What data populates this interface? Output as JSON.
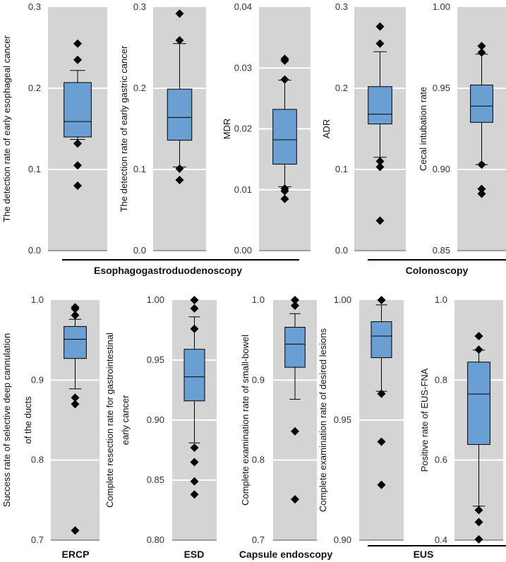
{
  "chart_data": [
    {
      "type": "box",
      "ylabel": "The detection rate of early esophageal cancer",
      "ylim": [
        0,
        0.3
      ],
      "ticks": [
        0.0,
        0.1,
        0.2,
        0.3
      ],
      "tick_labels": [
        "0.0",
        "0.1",
        "0.2",
        "0.3"
      ],
      "box": {
        "whisker_low": 0.137,
        "q1": 0.14,
        "median": 0.159,
        "q3": 0.207,
        "whisker_high": 0.222
      },
      "outliers": [
        0.255,
        0.235,
        0.132,
        0.105,
        0.08
      ]
    },
    {
      "type": "box",
      "ylabel": "The detection rate of early gastric cancer",
      "ylim": [
        0,
        0.3
      ],
      "ticks": [
        0.0,
        0.1,
        0.2,
        0.3
      ],
      "tick_labels": [
        "0.0",
        "0.1",
        "0.2",
        "0.3"
      ],
      "box": {
        "whisker_low": 0.103,
        "q1": 0.136,
        "median": 0.164,
        "q3": 0.199,
        "whisker_high": 0.255
      },
      "outliers": [
        0.292,
        0.259,
        0.101,
        0.087
      ]
    },
    {
      "type": "box",
      "ylabel": "MDR",
      "ylim": [
        0,
        0.04
      ],
      "ticks": [
        0.0,
        0.01,
        0.02,
        0.03,
        0.04
      ],
      "tick_labels": [
        "0.00",
        "0.01",
        "0.02",
        "0.03",
        "0.04"
      ],
      "box": {
        "whisker_low": 0.0105,
        "q1": 0.0142,
        "median": 0.0182,
        "q3": 0.0232,
        "whisker_high": 0.028
      },
      "outliers": [
        0.0315,
        0.0312,
        0.0281,
        0.0102,
        0.0098,
        0.0085
      ]
    },
    {
      "type": "box",
      "ylabel": "ADR",
      "ylim": [
        0,
        0.3
      ],
      "ticks": [
        0.0,
        0.1,
        0.2,
        0.3
      ],
      "tick_labels": [
        "0.0",
        "0.1",
        "0.2",
        "0.3"
      ],
      "box": {
        "whisker_low": 0.115,
        "q1": 0.156,
        "median": 0.168,
        "q3": 0.202,
        "whisker_high": 0.245
      },
      "outliers": [
        0.276,
        0.255,
        0.11,
        0.103,
        0.037
      ]
    },
    {
      "type": "box",
      "ylabel": "Cecal intubation rate",
      "ylim": [
        0.85,
        1.0
      ],
      "ticks": [
        0.85,
        0.9,
        0.95,
        1.0
      ],
      "tick_labels": [
        "0.85",
        "0.90",
        "0.95",
        "1.00"
      ],
      "box": {
        "whisker_low": 0.903,
        "q1": 0.929,
        "median": 0.939,
        "q3": 0.952,
        "whisker_high": 0.971
      },
      "outliers": [
        0.976,
        0.972,
        0.903,
        0.888,
        0.885
      ]
    },
    {
      "type": "box",
      "ylabel": "Success rate of selective deep cannulation of the ducts",
      "ylim": [
        0.7,
        1.0
      ],
      "ticks": [
        0.7,
        0.8,
        0.9,
        1.0
      ],
      "tick_labels": [
        "0.7",
        "0.8",
        "0.9",
        "1.0"
      ],
      "box": {
        "whisker_low": 0.889,
        "q1": 0.927,
        "median": 0.951,
        "q3": 0.967,
        "whisker_high": 0.976
      },
      "outliers": [
        0.991,
        0.989,
        0.981,
        0.878,
        0.87,
        0.712
      ]
    },
    {
      "type": "box",
      "ylabel": "Complete resection rate for gastrointestinal early cancer",
      "ylim": [
        0.8,
        1.0
      ],
      "ticks": [
        0.8,
        0.85,
        0.9,
        0.95,
        1.0
      ],
      "tick_labels": [
        "0.80",
        "0.85",
        "0.90",
        "0.95",
        "1.00"
      ],
      "box": {
        "whisker_low": 0.881,
        "q1": 0.916,
        "median": 0.936,
        "q3": 0.959,
        "whisker_high": 0.986
      },
      "outliers": [
        1.0,
        0.993,
        0.976,
        0.877,
        0.865,
        0.849,
        0.838
      ]
    },
    {
      "type": "box",
      "ylabel": "Complete examination rate of small-bowel",
      "ylim": [
        0.7,
        1.0
      ],
      "ticks": [
        0.7,
        0.8,
        0.9,
        1.0
      ],
      "tick_labels": [
        "0.7",
        "0.8",
        "0.9",
        "1.0"
      ],
      "box": {
        "whisker_low": 0.876,
        "q1": 0.916,
        "median": 0.945,
        "q3": 0.966,
        "whisker_high": 0.983
      },
      "outliers": [
        1.0,
        0.993,
        0.836,
        0.751
      ]
    },
    {
      "type": "box",
      "ylabel": "Complete examination rate of desired lesions",
      "ylim": [
        0.9,
        1.0
      ],
      "ticks": [
        0.9,
        0.95,
        1.0
      ],
      "tick_labels": [
        "0.90",
        "0.95",
        "1.00"
      ],
      "box": {
        "whisker_low": 0.962,
        "q1": 0.976,
        "median": 0.985,
        "q3": 0.991,
        "whisker_high": 0.998
      },
      "outliers": [
        1.0,
        0.961,
        0.941,
        0.923
      ]
    },
    {
      "type": "box",
      "ylabel": "Positive rate of EUS-FNA",
      "ylim": [
        0.4,
        1.0
      ],
      "ticks": [
        0.4,
        0.6,
        0.8,
        1.0
      ],
      "tick_labels": [
        "0.4",
        "0.6",
        "0.8",
        "1.0"
      ],
      "box": {
        "whisker_low": 0.485,
        "q1": 0.639,
        "median": 0.765,
        "q3": 0.845,
        "whisker_high": 0.875
      },
      "outliers": [
        0.91,
        0.876,
        0.475,
        0.445,
        0.402
      ]
    }
  ],
  "groups": [
    {
      "label": "Esophagogastroduodenoscopy"
    },
    {
      "label": "Colonoscopy"
    },
    {
      "label": "ERCP"
    },
    {
      "label": "ESD"
    },
    {
      "label": "Capsule endoscopy"
    },
    {
      "label": "EUS"
    }
  ],
  "colors": {
    "panel": "#d4d4d4",
    "box": "#6a9fd4",
    "stroke": "#000000",
    "grid": "#ffffff"
  }
}
